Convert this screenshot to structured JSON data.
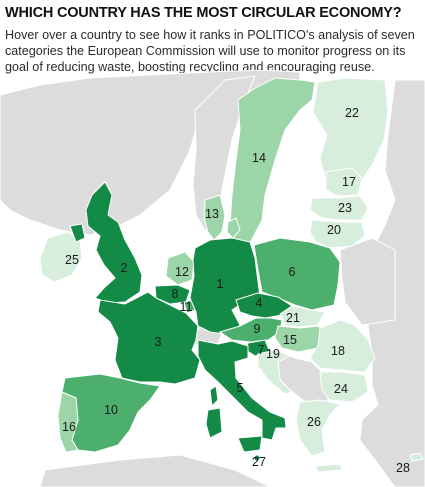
{
  "header": {
    "title": "WHICH COUNTRY HAS THE MOST CIRCULAR ECONOMY?",
    "subtitle": "Hover over a country to see how it ranks in POLITICO's analysis of seven categories the European Commission will use to monitor progress on its goal of reducing waste, boosting recycling and encouraging reuse."
  },
  "colors": {
    "background": "#ffffff",
    "sea": "#ffffff",
    "non_eu_land": "#dcdcdc",
    "rank_1_8": "#138a45",
    "rank_9_16": "#4caf6e",
    "rank_17_22": "#9bd5a8",
    "rank_23_28": "#d6eedb"
  },
  "ranks": {
    "germany": "1",
    "united_kingdom": "2",
    "france": "3",
    "czech_republic": "4",
    "italy": "5",
    "poland": "6",
    "slovenia": "7",
    "belgium": "8",
    "austria": "9",
    "spain": "10",
    "luxembourg": "11",
    "netherlands": "12",
    "denmark": "13",
    "sweden": "14",
    "hungary": "15",
    "portugal": "16",
    "estonia": "17",
    "romania": "18",
    "croatia": "19",
    "lithuania": "20",
    "slovakia": "21",
    "finland": "22",
    "latvia": "23",
    "bulgaria": "24",
    "ireland": "25",
    "greece": "26",
    "malta": "27",
    "cyprus": "28"
  }
}
